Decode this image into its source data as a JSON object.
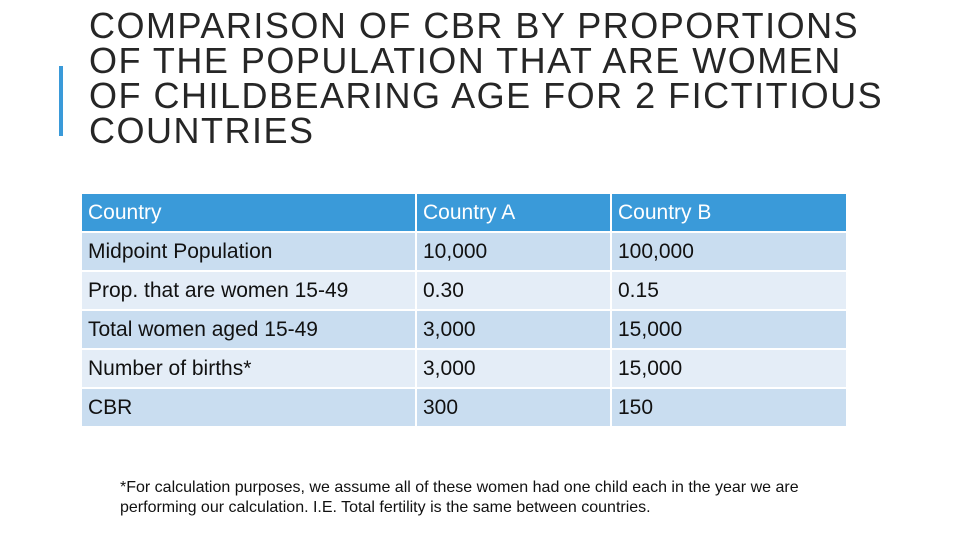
{
  "title": "COMPARISON OF CBR BY PROPORTIONS OF THE POPULATION THAT ARE WOMEN OF CHILDBEARING AGE FOR 2 FICTITIOUS COUNTRIES",
  "table": {
    "headers": [
      "Country",
      "Country A",
      "Country B"
    ],
    "rows": [
      [
        "Midpoint Population",
        "10,000",
        "100,000"
      ],
      [
        "Prop. that are women 15-49",
        "0.30",
        "0.15"
      ],
      [
        "Total women aged 15-49",
        "3,000",
        "15,000"
      ],
      [
        "Number of births*",
        "3,000",
        "15,000"
      ],
      [
        "CBR",
        "300",
        "150"
      ]
    ]
  },
  "footnote": "*For calculation purposes, we assume all of these women had one child each in the year we are performing our calculation.  I.E. Total fertility is the same between countries.",
  "colors": {
    "accent": "#3a9ad9",
    "row_dark": "#c9ddf0",
    "row_light": "#e4edf7",
    "text": "#262626"
  }
}
